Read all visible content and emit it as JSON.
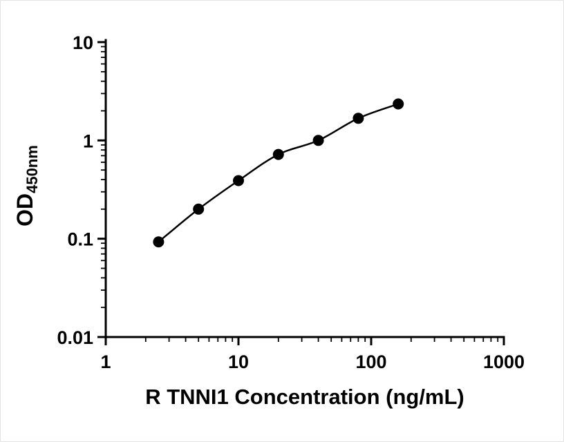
{
  "chart_data": {
    "type": "scatter",
    "title": "",
    "xlabel": "R TNNI1 Concentration (ng/mL)",
    "ylabel": "OD",
    "ylabel_sub": "450nm",
    "x_scale": "log",
    "y_scale": "log",
    "xlim": [
      1,
      1000
    ],
    "ylim": [
      0.01,
      10
    ],
    "x_ticks": [
      1,
      10,
      100,
      1000
    ],
    "x_tick_labels": [
      "1",
      "10",
      "100",
      "1000"
    ],
    "y_ticks": [
      0.01,
      0.1,
      1,
      10
    ],
    "y_tick_labels": [
      "0.01",
      "0.1",
      "1",
      "10"
    ],
    "x": [
      2.5,
      5,
      10,
      20,
      40,
      80,
      160
    ],
    "y": [
      0.093,
      0.2,
      0.39,
      0.72,
      1.0,
      1.68,
      2.35
    ],
    "grid": false,
    "legend": "none",
    "line_color": "#000000",
    "marker_color": "#000000",
    "axis_color": "#000000"
  }
}
